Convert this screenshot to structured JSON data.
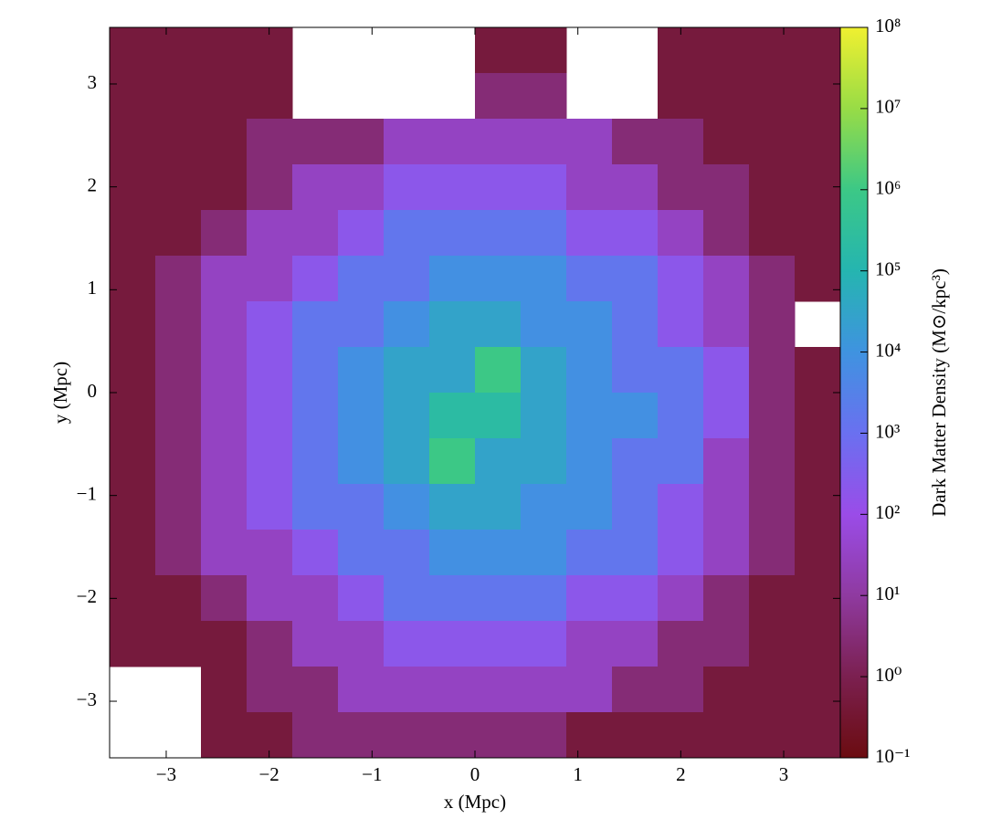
{
  "chart_data": {
    "type": "heatmap",
    "xlabel": "x (Mpc)",
    "ylabel": "y (Mpc)",
    "colorbar_label": "Dark Matter Density  (M⊙/kpc³)",
    "xlim": [
      -3.55,
      3.55
    ],
    "ylim": [
      -3.55,
      3.55
    ],
    "xticks": [
      {
        "value": -3,
        "label": "−3"
      },
      {
        "value": -2,
        "label": "−2"
      },
      {
        "value": -1,
        "label": "−1"
      },
      0,
      1,
      2,
      3
    ],
    "yticks": [
      {
        "value": -3,
        "label": "−3"
      },
      {
        "value": -2,
        "label": "−2"
      },
      {
        "value": -1,
        "label": "−1"
      },
      0,
      1,
      2,
      3
    ],
    "clim": [
      0.1,
      100000000
    ],
    "clog": true,
    "cticks": [
      {
        "value": 0.1,
        "label": "10⁻¹"
      },
      {
        "value": 1,
        "label": "10⁰"
      },
      {
        "value": 10,
        "label": "10¹"
      },
      {
        "value": 100,
        "label": "10²"
      },
      {
        "value": 1000,
        "label": "10³"
      },
      {
        "value": 10000,
        "label": "10⁴"
      },
      {
        "value": 100000,
        "label": "10⁵"
      },
      {
        "value": 1000000,
        "label": "10⁶"
      },
      {
        "value": 10000000,
        "label": "10⁷"
      },
      {
        "value": 100000000,
        "label": "10⁸"
      }
    ],
    "colorscale": [
      "#6b0c10",
      "#7b2050",
      "#8f3aa0",
      "#9a4ce8",
      "#6a70f0",
      "#3f93e0",
      "#25b5b0",
      "#3cc886",
      "#98dc46",
      "#f0f030"
    ],
    "z": [
      [
        0.5,
        0.5,
        0.5,
        0.5,
        null,
        null,
        null,
        null,
        0.5,
        0.5,
        null,
        null,
        0.5,
        0.5,
        0.5,
        0.5
      ],
      [
        0.5,
        0.5,
        0.5,
        0.5,
        null,
        null,
        null,
        null,
        3,
        3,
        null,
        null,
        0.5,
        0.5,
        0.5,
        0.5
      ],
      [
        0.5,
        0.5,
        0.5,
        3,
        3,
        3,
        30,
        30,
        30,
        30,
        30,
        3,
        3,
        0.5,
        0.5,
        0.5
      ],
      [
        0.5,
        0.5,
        0.5,
        3,
        30,
        30,
        200,
        200,
        200,
        200,
        30,
        30,
        3,
        3,
        0.5,
        0.5
      ],
      [
        0.5,
        0.5,
        3,
        30,
        30,
        200,
        1500,
        1500,
        1500,
        1500,
        200,
        200,
        30,
        3,
        0.5,
        0.5
      ],
      [
        0.5,
        3,
        30,
        30,
        200,
        1500,
        1500,
        8000,
        8000,
        8000,
        1500,
        1500,
        200,
        30,
        3,
        0.5
      ],
      [
        0.5,
        3,
        30,
        200,
        1500,
        1500,
        8000,
        30000,
        30000,
        8000,
        8000,
        1500,
        200,
        30,
        3,
        null
      ],
      [
        0.5,
        3,
        30,
        200,
        1500,
        8000,
        30000,
        30000,
        1000000,
        30000,
        8000,
        1500,
        1500,
        200,
        3,
        0.5
      ],
      [
        0.5,
        3,
        30,
        200,
        1500,
        8000,
        30000,
        200000,
        200000,
        30000,
        8000,
        8000,
        1500,
        200,
        3,
        0.5
      ],
      [
        0.5,
        3,
        30,
        200,
        1500,
        8000,
        30000,
        1000000,
        30000,
        30000,
        8000,
        1500,
        1500,
        30,
        3,
        0.5
      ],
      [
        0.5,
        3,
        30,
        200,
        1500,
        1500,
        8000,
        30000,
        30000,
        8000,
        8000,
        1500,
        200,
        30,
        3,
        0.5
      ],
      [
        0.5,
        3,
        30,
        30,
        200,
        1500,
        1500,
        8000,
        8000,
        8000,
        1500,
        1500,
        200,
        30,
        3,
        0.5
      ],
      [
        0.5,
        0.5,
        3,
        30,
        30,
        200,
        1500,
        1500,
        1500,
        1500,
        200,
        200,
        30,
        3,
        0.5,
        0.5
      ],
      [
        0.5,
        0.5,
        0.5,
        3,
        30,
        30,
        200,
        200,
        200,
        200,
        30,
        30,
        3,
        3,
        0.5,
        0.5
      ],
      [
        null,
        null,
        0.5,
        3,
        3,
        30,
        30,
        30,
        30,
        30,
        30,
        3,
        3,
        0.5,
        0.5,
        0.5
      ],
      [
        null,
        null,
        0.5,
        0.5,
        3,
        3,
        3,
        3,
        3,
        3,
        0.5,
        0.5,
        0.5,
        0.5,
        0.5,
        0.5
      ]
    ]
  }
}
